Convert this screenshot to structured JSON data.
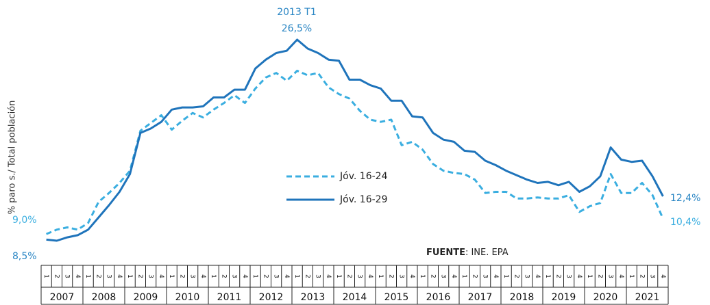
{
  "chart_data": {
    "type": "line",
    "y_label": "% paro s./ Total población",
    "years": [
      "2007",
      "2008",
      "2009",
      "2010",
      "2011",
      "2012",
      "2013",
      "2014",
      "2015",
      "2016",
      "2017",
      "2018",
      "2019",
      "2020",
      "2021"
    ],
    "quarters": [
      "1",
      "2",
      "3",
      "4"
    ],
    "series": [
      {
        "name": "Jóv. 16-24",
        "color": "#3aaee0",
        "dash": true,
        "values": [
          9.0,
          9.4,
          9.6,
          9.4,
          10.0,
          11.9,
          12.7,
          13.6,
          14.7,
          18.3,
          19.0,
          19.7,
          18.4,
          19.2,
          19.9,
          19.5,
          20.2,
          20.8,
          21.5,
          20.8,
          22.1,
          23.1,
          23.5,
          22.8,
          23.7,
          23.3,
          23.5,
          22.2,
          21.6,
          21.2,
          20.1,
          19.3,
          19.1,
          19.3,
          17.0,
          17.3,
          16.6,
          15.3,
          14.7,
          14.5,
          14.4,
          13.9,
          12.7,
          12.8,
          12.8,
          12.2,
          12.2,
          12.3,
          12.2,
          12.2,
          12.5,
          11.0,
          11.5,
          11.8,
          14.4,
          12.7,
          12.7,
          13.6,
          12.5,
          10.4
        ]
      },
      {
        "name": "Jóv. 16-29",
        "color": "#1f74bb",
        "dash": false,
        "values": [
          8.5,
          8.4,
          8.7,
          8.9,
          9.4,
          10.5,
          11.6,
          12.8,
          14.4,
          18.1,
          18.5,
          19.1,
          20.2,
          20.4,
          20.4,
          20.5,
          21.3,
          21.3,
          22.0,
          22.0,
          23.9,
          24.7,
          25.3,
          25.5,
          26.5,
          25.7,
          25.3,
          24.7,
          24.6,
          22.9,
          22.9,
          22.4,
          22.1,
          21.0,
          21.0,
          19.6,
          19.5,
          18.1,
          17.5,
          17.3,
          16.5,
          16.4,
          15.6,
          15.2,
          14.7,
          14.3,
          13.9,
          13.6,
          13.7,
          13.4,
          13.7,
          12.8,
          13.3,
          14.2,
          16.8,
          15.7,
          15.5,
          15.6,
          14.2,
          12.4
        ]
      }
    ],
    "annotations": [
      {
        "text": "9,0%",
        "color": "#3aaee0"
      },
      {
        "text": "8,5%",
        "color": "#2a86c4"
      },
      {
        "text": "2013 T1",
        "color": "#2a86c4"
      },
      {
        "text": "26,5%",
        "color": "#2a86c4"
      },
      {
        "text": "12,4%",
        "color": "#2a86c4"
      },
      {
        "text": "10,4%",
        "color": "#3aaee0"
      }
    ],
    "source_label": "FUENTE",
    "source_text": ": INE. EPA"
  }
}
